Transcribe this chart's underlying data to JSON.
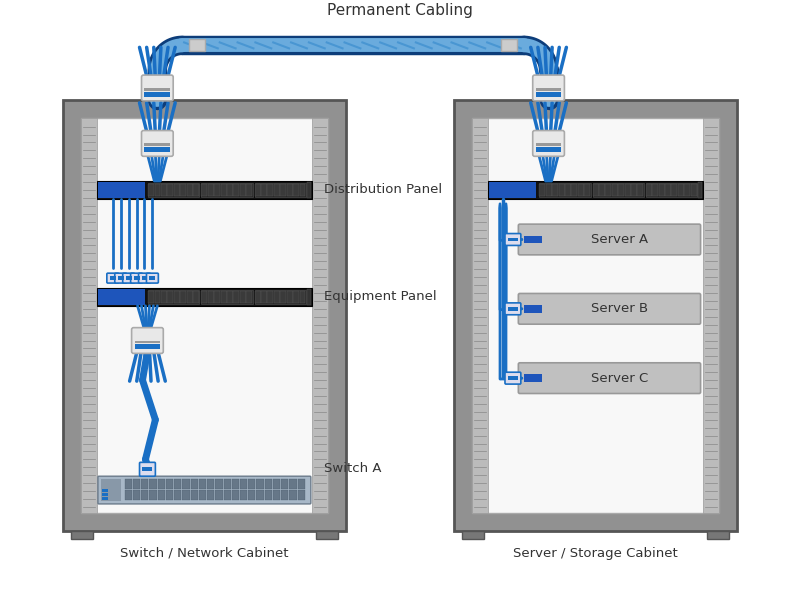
{
  "title": "Permanent Cabling",
  "cabinet1_label": "Switch / Network Cabinet",
  "cabinet2_label": "Server / Storage Cabinet",
  "panel1_label": "Distribution Panel",
  "panel2_label": "Equipment Panel",
  "switch_label": "Switch A",
  "server_labels": [
    "Server A",
    "Server B",
    "Server C"
  ],
  "bg_color": "#ffffff",
  "cable_blue": "#1a6fc4",
  "cable_dark": "#0d3d7a",
  "cable_light": "#6aabdd",
  "connector_gray": "#cccccc",
  "panel_black": "#111111",
  "panel_blue_left": "#2255bb",
  "server_fill": "#c8c8c8",
  "server_edge": "#999999",
  "switch_fill": "#a0b0c0",
  "switch_ports": "#556677",
  "rack_outer": "#888888",
  "rack_inner": "#f5f5f5",
  "rack_rail": "#aaaaaa",
  "rack_edge": "#555555",
  "foot_fill": "#777777",
  "title_fontsize": 11,
  "label_fontsize": 9.5
}
